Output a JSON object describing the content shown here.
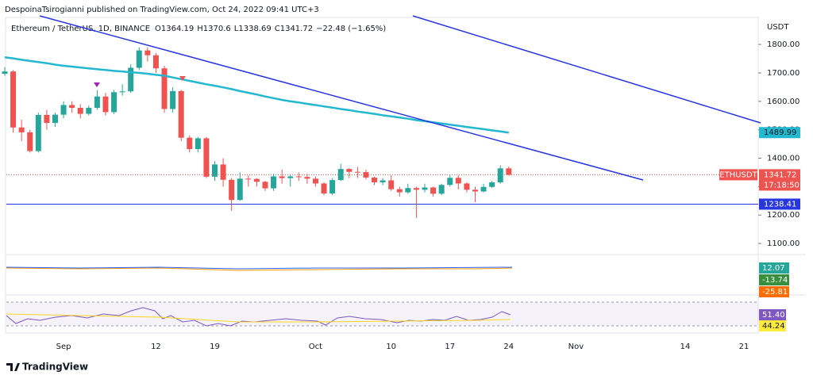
{
  "attribution": "DespoinaTsirogianni published on TradingView.com, Oct 24, 2022 09:41 UTC+3",
  "footer": "TradingView",
  "chart_data": {
    "type": "candlestick",
    "title": "Ethereum / TetherUS, 1D, BINANCE",
    "ohlc_letters": [
      "O",
      "H",
      "L",
      "C"
    ],
    "change": "−22.48 (−1.65%)",
    "currency": "USDT",
    "symbol": "ETHUSDT",
    "countdown": "17:18:50",
    "up_color": "#26a69a",
    "down_color": "#ef5350",
    "categories": [
      null,
      null,
      null,
      null,
      null,
      null,
      null,
      "Sep",
      null,
      null,
      null,
      null,
      null,
      null,
      null,
      null,
      null,
      null,
      "12",
      null,
      null,
      null,
      null,
      null,
      null,
      "19",
      null,
      null,
      null,
      null,
      null,
      null,
      null,
      null,
      null,
      null,
      null,
      "Oct",
      null,
      null,
      null,
      null,
      null,
      null,
      null,
      null,
      "10",
      null,
      null,
      null,
      null,
      null,
      null,
      "17",
      null,
      null,
      null,
      null,
      null,
      null,
      "24",
      null,
      null,
      null,
      null,
      null,
      null,
      null,
      "Nov",
      null,
      null,
      null,
      null,
      null,
      null,
      null,
      null,
      null,
      null,
      null,
      null,
      "14",
      null,
      null,
      null,
      null,
      null,
      null,
      "21"
    ],
    "open": [
      1697,
      1705,
      1508,
      1491,
      1425,
      1552,
      1524,
      1553,
      1587,
      1577,
      1556,
      1577,
      1617,
      1562,
      1632,
      1635,
      1718,
      1779,
      1762,
      1716,
      1573,
      1636,
      1472,
      1432,
      1470,
      1335,
      1378,
      1324,
      1253,
      1328,
      1327,
      1317,
      1294,
      1336,
      1330,
      1336,
      1334,
      1328,
      1311,
      1276,
      1323,
      1362,
      1352,
      1351,
      1332,
      1315,
      1322,
      1291,
      1280,
      1295,
      1289,
      1297,
      1275,
      1306,
      1331,
      1311,
      1289,
      1283,
      1299,
      1315,
      1364.19,
      null,
      null,
      null,
      null,
      null,
      null,
      null,
      null,
      null,
      null,
      null,
      null,
      null,
      null,
      null,
      null,
      null,
      null,
      null,
      null,
      null,
      null,
      null,
      null,
      null,
      null,
      null,
      null
    ],
    "high": [
      1720,
      1710,
      1535,
      1500,
      1560,
      1570,
      1560,
      1600,
      1600,
      1590,
      1585,
      1640,
      1630,
      1640,
      1660,
      1730,
      1790,
      1790,
      1770,
      1725,
      1650,
      1640,
      1480,
      1475,
      1475,
      1390,
      1400,
      1330,
      1350,
      1340,
      1330,
      1320,
      1345,
      1360,
      1340,
      1350,
      1345,
      1335,
      1315,
      1330,
      1380,
      1365,
      1370,
      1360,
      1335,
      1330,
      1340,
      1300,
      1310,
      1300,
      1310,
      1300,
      1310,
      1340,
      1340,
      1315,
      1300,
      1310,
      1320,
      1375,
      1370.6,
      null,
      null,
      null,
      null,
      null,
      null,
      null,
      null,
      null,
      null,
      null,
      null,
      null,
      null,
      null,
      null,
      null,
      null,
      null,
      null,
      null,
      null,
      null,
      null,
      null,
      null,
      null,
      null
    ],
    "low": [
      1690,
      1490,
      1460,
      1420,
      1420,
      1500,
      1510,
      1540,
      1560,
      1540,
      1550,
      1570,
      1550,
      1555,
      1620,
      1630,
      1710,
      1740,
      1700,
      1560,
      1560,
      1460,
      1420,
      1420,
      1330,
      1320,
      1300,
      1215,
      1250,
      1300,
      1300,
      1285,
      1285,
      1310,
      1300,
      1320,
      1310,
      1300,
      1270,
      1270,
      1320,
      1330,
      1330,
      1325,
      1305,
      1305,
      1285,
      1265,
      1275,
      1190,
      1280,
      1265,
      1270,
      1300,
      1290,
      1280,
      1245,
      1280,
      1295,
      1310,
      1338.69,
      null,
      null,
      null,
      null,
      null,
      null,
      null,
      null,
      null,
      null,
      null,
      null,
      null,
      null,
      null,
      null,
      null,
      null,
      null,
      null,
      null,
      null,
      null,
      null,
      null,
      null,
      null,
      null
    ],
    "close": [
      1705,
      1508,
      1491,
      1425,
      1552,
      1524,
      1553,
      1587,
      1577,
      1556,
      1577,
      1617,
      1562,
      1632,
      1635,
      1718,
      1779,
      1762,
      1716,
      1573,
      1636,
      1472,
      1432,
      1470,
      1335,
      1378,
      1324,
      1253,
      1328,
      1327,
      1317,
      1294,
      1336,
      1330,
      1336,
      1334,
      1328,
      1311,
      1276,
      1323,
      1362,
      1352,
      1351,
      1332,
      1315,
      1322,
      1291,
      1280,
      1295,
      1289,
      1297,
      1275,
      1306,
      1331,
      1311,
      1289,
      1283,
      1299,
      1315,
      1364.2,
      1341.72,
      null,
      null,
      null,
      null,
      null,
      null,
      null,
      null,
      null,
      null,
      null,
      null,
      null,
      null,
      null,
      null,
      null,
      null,
      null,
      null,
      null,
      null,
      null,
      null,
      null,
      null,
      null,
      null
    ],
    "ma": {
      "color": "#22b8cf",
      "values": [
        1755,
        1751,
        1746,
        1742,
        1738,
        1734,
        1729,
        1725,
        1722,
        1719,
        1716,
        1713,
        1710,
        1707,
        1705,
        1702,
        1700,
        1697,
        1693,
        1690,
        1684,
        1678,
        1672,
        1666,
        1660,
        1655,
        1649,
        1643,
        1636,
        1630,
        1624,
        1617,
        1611,
        1605,
        1600,
        1596,
        1591,
        1587,
        1582,
        1578,
        1573,
        1569,
        1564,
        1560,
        1556,
        1551,
        1547,
        1543,
        1539,
        1534,
        1530,
        1526,
        1522,
        1518,
        1514,
        1510,
        1506,
        1502,
        1498,
        1494,
        1489.99,
        null,
        null,
        null,
        null,
        null,
        null,
        null,
        null,
        null,
        null,
        null,
        null,
        null,
        null,
        null,
        null,
        null,
        null,
        null,
        null,
        null,
        null,
        null,
        null,
        null,
        null,
        null,
        null
      ]
    },
    "hline": 1238.41,
    "ylim": [
      1064,
      1895
    ],
    "yticks": [
      {
        "value": 1100,
        "label": "1100.00"
      },
      {
        "value": 1200,
        "label": "1200.00"
      },
      {
        "value": 1300,
        "label": "1300.00"
      },
      {
        "value": 1400,
        "label": "1400.00"
      },
      {
        "value": 1500,
        "label": "1500.00"
      },
      {
        "value": 1600,
        "label": "1600.00"
      },
      {
        "value": 1700,
        "label": "1700.00"
      },
      {
        "value": 1800,
        "label": "1800.00"
      }
    ],
    "macd_values": [
      12.07,
      -13.74,
      -25.81
    ],
    "rsi_values": [
      {
        "value": 51.4,
        "label": "51.40"
      },
      44.24
    ]
  }
}
